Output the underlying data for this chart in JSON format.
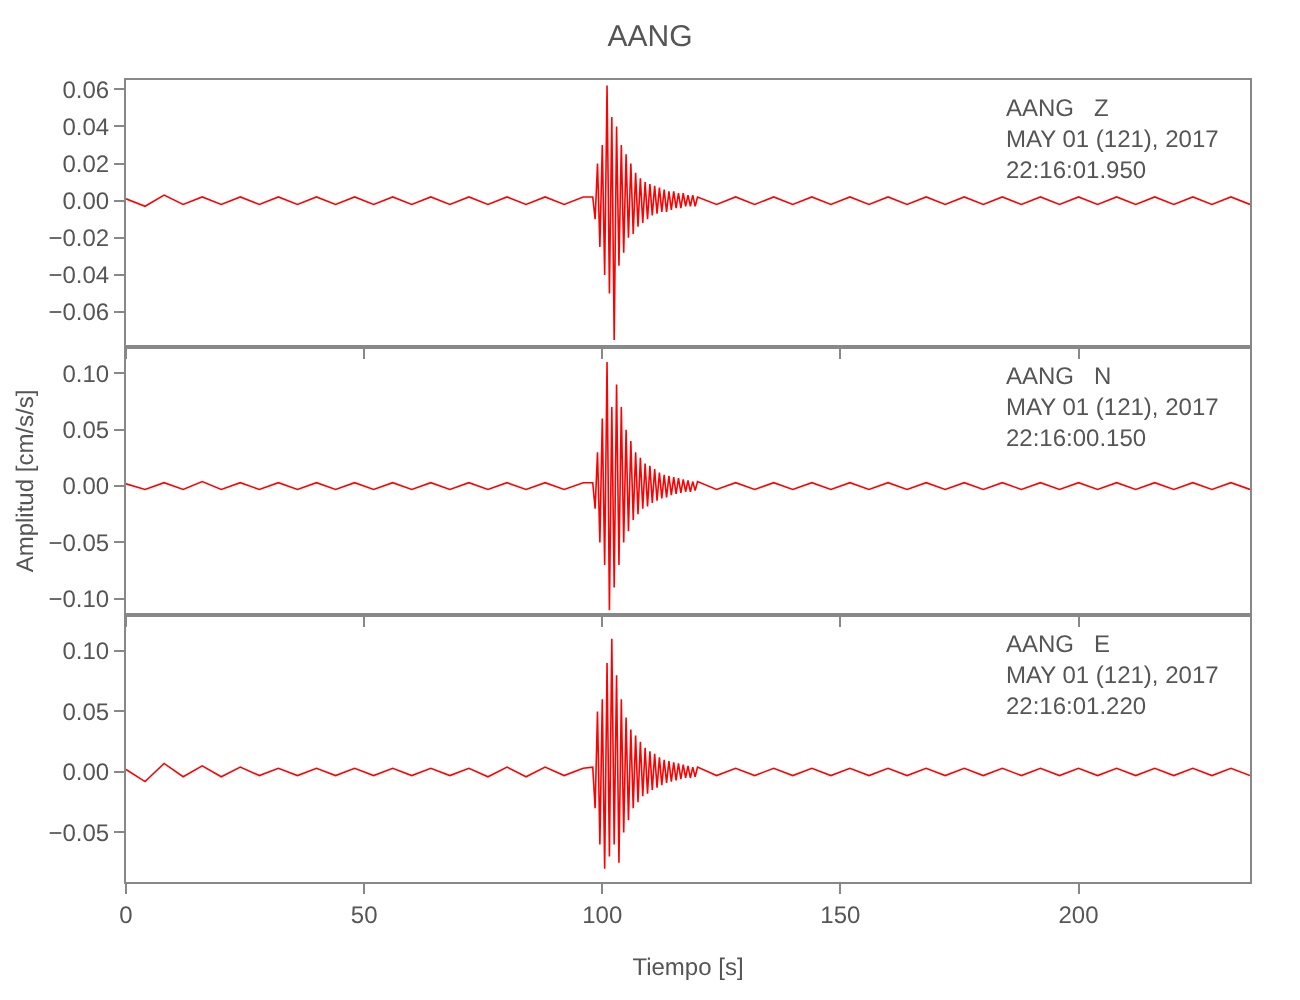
{
  "chart_data": [
    {
      "type": "line",
      "title": "AANG",
      "annotations": [
        "AANG   Z\nMAY 01 (121), 2017\n22:16:01.950"
      ],
      "tick_labels": "y",
      "xlim": [
        0,
        236
      ],
      "ylim": [
        -0.079,
        0.065
      ],
      "yticks": [
        {
          "value": -0.06,
          "label": "−0.06"
        },
        {
          "value": -0.04,
          "label": "−0.04"
        },
        {
          "value": -0.02,
          "label": "−0.02"
        },
        {
          "value": 0,
          "label": "0.00"
        },
        {
          "value": 0.02,
          "label": "0.02"
        },
        {
          "value": 0.04,
          "label": "0.04"
        },
        {
          "value": 0.06,
          "label": "0.06"
        }
      ],
      "x": [
        0,
        4,
        8,
        12,
        16,
        20,
        24,
        28,
        32,
        36,
        40,
        44,
        48,
        52,
        56,
        60,
        64,
        68,
        72,
        76,
        80,
        84,
        88,
        92,
        96,
        98,
        98.5,
        99,
        99.5,
        100,
        100.5,
        101,
        101.5,
        102,
        102.5,
        103,
        103.5,
        104,
        104.5,
        105,
        105.5,
        106,
        106.5,
        107,
        107.5,
        108,
        108.5,
        109,
        109.5,
        110,
        110.5,
        111,
        111.5,
        112,
        112.5,
        113,
        113.5,
        114,
        114.5,
        115,
        115.5,
        116,
        116.5,
        117,
        117.5,
        118,
        118.5,
        119,
        119.5,
        120,
        124,
        128,
        132,
        136,
        140,
        144,
        148,
        152,
        156,
        160,
        164,
        168,
        172,
        176,
        180,
        184,
        188,
        192,
        196,
        200,
        204,
        208,
        212,
        216,
        220,
        224,
        228,
        232,
        236
      ],
      "series": [
        {
          "color": "#ff0000",
          "values": [
            0.001,
            -0.003,
            0.003,
            -0.002,
            0.002,
            -0.002,
            0.002,
            -0.002,
            0.002,
            -0.002,
            0.002,
            -0.002,
            0.002,
            -0.002,
            0.002,
            -0.002,
            0.002,
            -0.002,
            0.002,
            -0.002,
            0.002,
            -0.002,
            0.002,
            -0.002,
            0.002,
            0.002,
            -0.01,
            0.02,
            -0.025,
            0.03,
            -0.04,
            0.062,
            -0.05,
            0.045,
            -0.075,
            0.04,
            -0.035,
            0.03,
            -0.028,
            0.025,
            -0.02,
            0.02,
            -0.018,
            0.015,
            -0.014,
            0.012,
            -0.012,
            0.01,
            -0.01,
            0.009,
            -0.008,
            0.008,
            -0.007,
            0.007,
            -0.006,
            0.006,
            -0.006,
            0.005,
            -0.005,
            0.005,
            -0.004,
            0.004,
            -0.004,
            0.004,
            -0.003,
            0.003,
            -0.003,
            0.003,
            -0.003,
            0.002,
            -0.002,
            0.002,
            -0.002,
            0.002,
            -0.002,
            0.002,
            -0.002,
            0.002,
            -0.002,
            0.002,
            -0.002,
            0.002,
            -0.002,
            0.002,
            -0.002,
            0.002,
            -0.002,
            0.002,
            -0.002,
            0.002,
            -0.002,
            0.002,
            -0.002,
            0.002,
            -0.002,
            0.002,
            -0.002,
            0.002,
            -0.002
          ]
        }
      ]
    },
    {
      "type": "line",
      "ylabel": "Amplitud [cm/s/s]",
      "annotations": [
        "AANG   N\nMAY 01 (121), 2017\n22:16:00.150"
      ],
      "tick_labels": "y",
      "xlim": [
        0,
        236
      ],
      "ylim": [
        -0.114,
        0.123
      ],
      "yticks": [
        {
          "value": -0.1,
          "label": "−0.10"
        },
        {
          "value": -0.05,
          "label": "−0.05"
        },
        {
          "value": 0,
          "label": "0.00"
        },
        {
          "value": 0.05,
          "label": "0.05"
        },
        {
          "value": 0.1,
          "label": "0.10"
        }
      ],
      "x": [
        0,
        4,
        8,
        12,
        16,
        20,
        24,
        28,
        32,
        36,
        40,
        44,
        48,
        52,
        56,
        60,
        64,
        68,
        72,
        76,
        80,
        84,
        88,
        92,
        96,
        98,
        98.5,
        99,
        99.5,
        100,
        100.5,
        101,
        101.5,
        102,
        102.5,
        103,
        103.5,
        104,
        104.5,
        105,
        105.5,
        106,
        106.5,
        107,
        107.5,
        108,
        108.5,
        109,
        109.5,
        110,
        110.5,
        111,
        111.5,
        112,
        112.5,
        113,
        113.5,
        114,
        114.5,
        115,
        115.5,
        116,
        116.5,
        117,
        117.5,
        118,
        118.5,
        119,
        119.5,
        120,
        124,
        128,
        132,
        136,
        140,
        144,
        148,
        152,
        156,
        160,
        164,
        168,
        172,
        176,
        180,
        184,
        188,
        192,
        196,
        200,
        204,
        208,
        212,
        216,
        220,
        224,
        228,
        232,
        236
      ],
      "series": [
        {
          "color": "#ff0000",
          "values": [
            0.002,
            -0.003,
            0.003,
            -0.003,
            0.004,
            -0.003,
            0.003,
            -0.003,
            0.003,
            -0.003,
            0.003,
            -0.003,
            0.003,
            -0.003,
            0.003,
            -0.003,
            0.003,
            -0.003,
            0.003,
            -0.003,
            0.003,
            -0.003,
            0.003,
            -0.003,
            0.003,
            0.003,
            -0.02,
            0.03,
            -0.05,
            0.06,
            -0.07,
            0.11,
            -0.11,
            0.07,
            -0.09,
            0.09,
            -0.07,
            0.07,
            -0.05,
            0.05,
            -0.04,
            0.04,
            -0.03,
            0.03,
            -0.025,
            0.025,
            -0.02,
            0.02,
            -0.018,
            0.018,
            -0.015,
            0.015,
            -0.013,
            0.012,
            -0.011,
            0.01,
            -0.01,
            0.009,
            -0.008,
            0.008,
            -0.007,
            0.007,
            -0.006,
            0.006,
            -0.005,
            0.005,
            -0.005,
            0.004,
            -0.004,
            0.004,
            -0.003,
            0.003,
            -0.003,
            0.003,
            -0.003,
            0.003,
            -0.003,
            0.003,
            -0.003,
            0.003,
            -0.003,
            0.003,
            -0.003,
            0.003,
            -0.003,
            0.003,
            -0.003,
            0.003,
            -0.003,
            0.003,
            -0.003,
            0.003,
            -0.003,
            0.003,
            -0.003,
            0.003,
            -0.003,
            0.003,
            -0.003
          ]
        }
      ]
    },
    {
      "type": "line",
      "xlabel": "Tiempo [s]",
      "annotations": [
        "AANG   E\nMAY 01 (121), 2017\n22:16:01.220"
      ],
      "xlim": [
        0,
        236
      ],
      "ylim": [
        -0.091,
        0.13
      ],
      "xticks": [
        0,
        50,
        100,
        150,
        200
      ],
      "yticks": [
        {
          "value": -0.05,
          "label": "−0.05"
        },
        {
          "value": 0,
          "label": "0.00"
        },
        {
          "value": 0.05,
          "label": "0.05"
        },
        {
          "value": 0.1,
          "label": "0.10"
        }
      ],
      "x": [
        0,
        4,
        8,
        12,
        16,
        20,
        24,
        28,
        32,
        36,
        40,
        44,
        48,
        52,
        56,
        60,
        64,
        68,
        72,
        76,
        80,
        84,
        88,
        92,
        96,
        98,
        98.5,
        99,
        99.5,
        100,
        100.5,
        101,
        101.5,
        102,
        102.5,
        103,
        103.5,
        104,
        104.5,
        105,
        105.5,
        106,
        106.5,
        107,
        107.5,
        108,
        108.5,
        109,
        109.5,
        110,
        110.5,
        111,
        111.5,
        112,
        112.5,
        113,
        113.5,
        114,
        114.5,
        115,
        115.5,
        116,
        116.5,
        117,
        117.5,
        118,
        118.5,
        119,
        119.5,
        120,
        124,
        128,
        132,
        136,
        140,
        144,
        148,
        152,
        156,
        160,
        164,
        168,
        172,
        176,
        180,
        184,
        188,
        192,
        196,
        200,
        204,
        208,
        212,
        216,
        220,
        224,
        228,
        232,
        236
      ],
      "series": [
        {
          "color": "#ff0000",
          "values": [
            0.002,
            -0.008,
            0.007,
            -0.004,
            0.005,
            -0.004,
            0.004,
            -0.003,
            0.003,
            -0.003,
            0.003,
            -0.003,
            0.003,
            -0.003,
            0.003,
            -0.003,
            0.003,
            -0.003,
            0.003,
            -0.004,
            0.004,
            -0.004,
            0.004,
            -0.003,
            0.003,
            0.004,
            -0.03,
            0.05,
            -0.06,
            0.06,
            -0.08,
            0.09,
            -0.07,
            0.11,
            -0.06,
            0.08,
            -0.075,
            0.06,
            -0.05,
            0.045,
            -0.04,
            0.035,
            -0.03,
            0.03,
            -0.025,
            0.025,
            -0.02,
            0.02,
            -0.018,
            0.017,
            -0.015,
            0.015,
            -0.013,
            0.012,
            -0.011,
            0.01,
            -0.009,
            0.009,
            -0.008,
            0.008,
            -0.007,
            0.007,
            -0.006,
            0.006,
            -0.005,
            0.005,
            -0.005,
            0.004,
            -0.004,
            0.004,
            -0.003,
            0.003,
            -0.003,
            0.003,
            -0.003,
            0.003,
            -0.003,
            0.003,
            -0.003,
            0.003,
            -0.003,
            0.003,
            -0.003,
            0.003,
            -0.003,
            0.003,
            -0.003,
            0.003,
            -0.003,
            0.003,
            -0.003,
            0.003,
            -0.003,
            0.003,
            -0.003,
            0.003,
            -0.003,
            0.003,
            -0.003
          ]
        }
      ]
    }
  ]
}
